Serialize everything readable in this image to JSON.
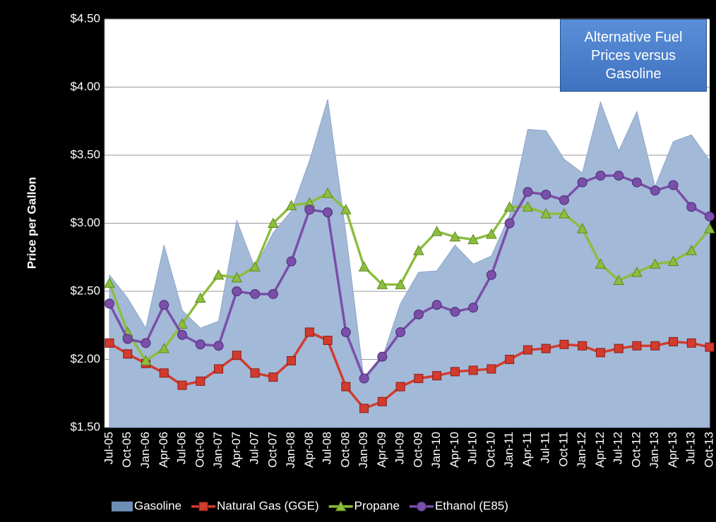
{
  "chart_data": {
    "type": "line",
    "title": "Alternative Fuel Prices versus Gasoline",
    "y_label": "Price per Gallon",
    "categories": [
      "Jul-05",
      "Oct-05",
      "Jan-06",
      "Apr-06",
      "Jul-06",
      "Oct-06",
      "Jan-07",
      "Apr-07",
      "Jul-07",
      "Oct-07",
      "Jan-08",
      "Apr-08",
      "Jul-08",
      "Oct-08",
      "Jan-09",
      "Apr-09",
      "Jul-09",
      "Oct-09",
      "Jan-10",
      "Apr-10",
      "Jul-10",
      "Oct-10",
      "Jan-11",
      "Apr-11",
      "Jul-11",
      "Oct-11",
      "Jan-12",
      "Apr-12",
      "Jul-12",
      "Oct-12",
      "Jan-13",
      "Apr-13",
      "Jul-13",
      "Oct-13"
    ],
    "series": [
      {
        "name": "Gasoline",
        "color": "#a3b9d8",
        "kind": "area",
        "values": [
          2.62,
          2.45,
          2.23,
          2.84,
          2.36,
          2.23,
          2.28,
          3.02,
          2.67,
          2.93,
          3.09,
          3.46,
          3.91,
          2.93,
          1.84,
          2.01,
          2.41,
          2.64,
          2.65,
          2.84,
          2.7,
          2.76,
          3.06,
          3.69,
          3.68,
          3.47,
          3.37,
          3.89,
          3.53,
          3.82,
          3.27,
          3.6,
          3.65,
          3.46
        ]
      },
      {
        "name": "Natural Gas (GGE)",
        "color": "#d23b2e",
        "marker": "square",
        "values": [
          2.12,
          2.04,
          1.97,
          1.9,
          1.81,
          1.84,
          1.93,
          2.03,
          1.9,
          1.87,
          1.99,
          2.2,
          2.14,
          1.8,
          1.64,
          1.69,
          1.8,
          1.86,
          1.88,
          1.91,
          1.92,
          1.93,
          2.0,
          2.07,
          2.08,
          2.11,
          2.1,
          2.05,
          2.08,
          2.1,
          2.1,
          2.13,
          2.12,
          2.09
        ]
      },
      {
        "name": "Propane",
        "color": "#8cbd3f",
        "marker": "triangle",
        "values": [
          2.56,
          2.2,
          1.99,
          2.08,
          2.26,
          2.45,
          2.62,
          2.6,
          2.68,
          3.0,
          3.13,
          3.15,
          3.22,
          3.1,
          2.68,
          2.55,
          2.55,
          2.8,
          2.94,
          2.9,
          2.88,
          2.92,
          3.12,
          3.12,
          3.07,
          3.07,
          2.96,
          2.7,
          2.58,
          2.64,
          2.7,
          2.72,
          2.8,
          2.96
        ]
      },
      {
        "name": "Ethanol (E85)",
        "color": "#7a4fa8",
        "marker": "circle",
        "values": [
          2.41,
          2.15,
          2.12,
          2.4,
          2.18,
          2.11,
          2.1,
          2.5,
          2.48,
          2.48,
          2.72,
          3.1,
          3.08,
          2.2,
          1.86,
          2.02,
          2.2,
          2.33,
          2.4,
          2.35,
          2.38,
          2.62,
          3.0,
          3.23,
          3.21,
          3.17,
          3.3,
          3.35,
          3.35,
          3.3,
          3.24,
          3.28,
          3.12,
          3.05
        ]
      }
    ],
    "ylim": [
      1.5,
      4.5
    ],
    "yticks": [
      {
        "value": 1.5,
        "label": "$1.50"
      },
      {
        "value": 2.0,
        "label": "$2.00"
      },
      {
        "value": 2.5,
        "label": "$2.50"
      },
      {
        "value": 3.0,
        "label": "$3.00"
      },
      {
        "value": 3.5,
        "label": "$3.50"
      },
      {
        "value": 4.0,
        "label": "$4.00"
      },
      {
        "value": 4.5,
        "label": "$4.50"
      }
    ],
    "grid": true,
    "legend": "bottom"
  }
}
